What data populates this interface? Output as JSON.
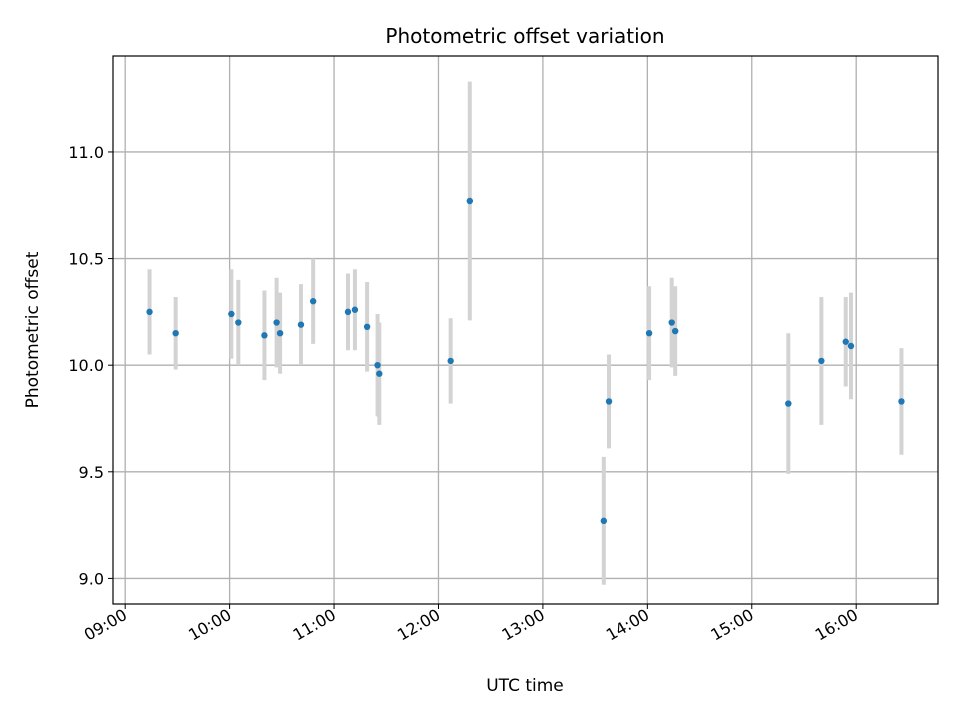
{
  "chart_data": {
    "type": "scatter",
    "title": "Photometric offset variation",
    "xlabel": "UTC time",
    "ylabel": "Photometric offset",
    "xlim": [
      "08:53",
      "16:47"
    ],
    "ylim": [
      8.88,
      11.45
    ],
    "x_ticks": [
      "09:00",
      "10:00",
      "11:00",
      "12:00",
      "13:00",
      "14:00",
      "15:00",
      "16:00"
    ],
    "y_ticks": [
      "9.0",
      "9.5",
      "10.0",
      "10.5",
      "11.0"
    ],
    "grid": true,
    "colors": {
      "marker": "#1f77b4",
      "errorbar": "#d3d3d3",
      "grid": "#b0b0b0"
    },
    "points": [
      {
        "x": "09:14",
        "y": 10.25,
        "yerr": 0.2
      },
      {
        "x": "09:29",
        "y": 10.15,
        "yerr": 0.17
      },
      {
        "x": "10:01",
        "y": 10.24,
        "yerr": 0.21
      },
      {
        "x": "10:05",
        "y": 10.2,
        "yerr": 0.2
      },
      {
        "x": "10:20",
        "y": 10.14,
        "yerr": 0.21
      },
      {
        "x": "10:27",
        "y": 10.2,
        "yerr": 0.21
      },
      {
        "x": "10:29",
        "y": 10.15,
        "yerr": 0.19
      },
      {
        "x": "10:41",
        "y": 10.19,
        "yerr": 0.19
      },
      {
        "x": "10:48",
        "y": 10.3,
        "yerr": 0.2
      },
      {
        "x": "11:08",
        "y": 10.25,
        "yerr": 0.18
      },
      {
        "x": "11:12",
        "y": 10.26,
        "yerr": 0.19
      },
      {
        "x": "11:19",
        "y": 10.18,
        "yerr": 0.21
      },
      {
        "x": "11:25",
        "y": 10.0,
        "yerr": 0.24
      },
      {
        "x": "11:26",
        "y": 9.96,
        "yerr": 0.24
      },
      {
        "x": "12:07",
        "y": 10.02,
        "yerr": 0.2
      },
      {
        "x": "12:18",
        "y": 10.77,
        "yerr": 0.56
      },
      {
        "x": "13:35",
        "y": 9.27,
        "yerr": 0.3
      },
      {
        "x": "13:38",
        "y": 9.83,
        "yerr": 0.22
      },
      {
        "x": "14:01",
        "y": 10.15,
        "yerr": 0.22
      },
      {
        "x": "14:14",
        "y": 10.2,
        "yerr": 0.21
      },
      {
        "x": "14:16",
        "y": 10.16,
        "yerr": 0.21
      },
      {
        "x": "15:21",
        "y": 9.82,
        "yerr": 0.33
      },
      {
        "x": "15:40",
        "y": 10.02,
        "yerr": 0.3
      },
      {
        "x": "15:54",
        "y": 10.11,
        "yerr": 0.21
      },
      {
        "x": "15:57",
        "y": 10.09,
        "yerr": 0.25
      },
      {
        "x": "16:26",
        "y": 9.83,
        "yerr": 0.25
      }
    ]
  }
}
